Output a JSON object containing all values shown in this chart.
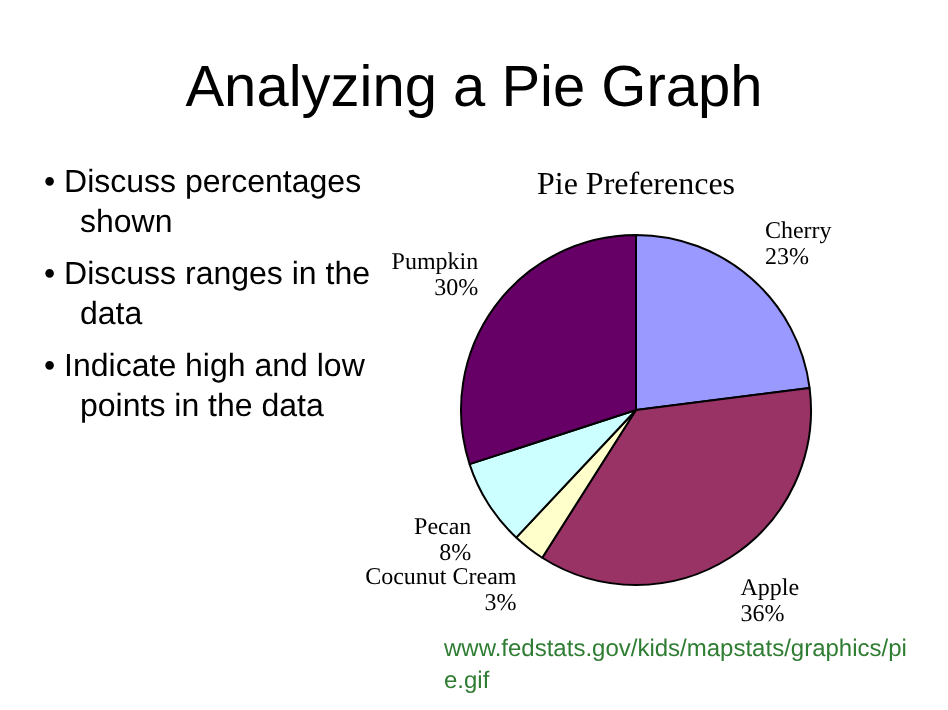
{
  "chart_data": {
    "type": "pie",
    "title": "Analyzing a Pie Graph",
    "subtitle": "Pie Preferences",
    "categories": [
      "Cherry",
      "Apple",
      "Cocunut Cream",
      "Pecan",
      "Pumpkin"
    ],
    "values": [
      23,
      36,
      3,
      8,
      30
    ],
    "colors": [
      "#9999ff",
      "#993366",
      "#ffffcc",
      "#ccffff",
      "#660066"
    ],
    "value_labels": [
      "23%",
      "36%",
      "3%",
      "8%",
      "30%"
    ],
    "legend": false,
    "annotations": [
      "• Discuss percentages shown",
      "• Discuss ranges in the data",
      "• Indicate high and low points in the data",
      "www.fedstats.gov/kids/mapstats/graphics/pie.gif"
    ]
  }
}
